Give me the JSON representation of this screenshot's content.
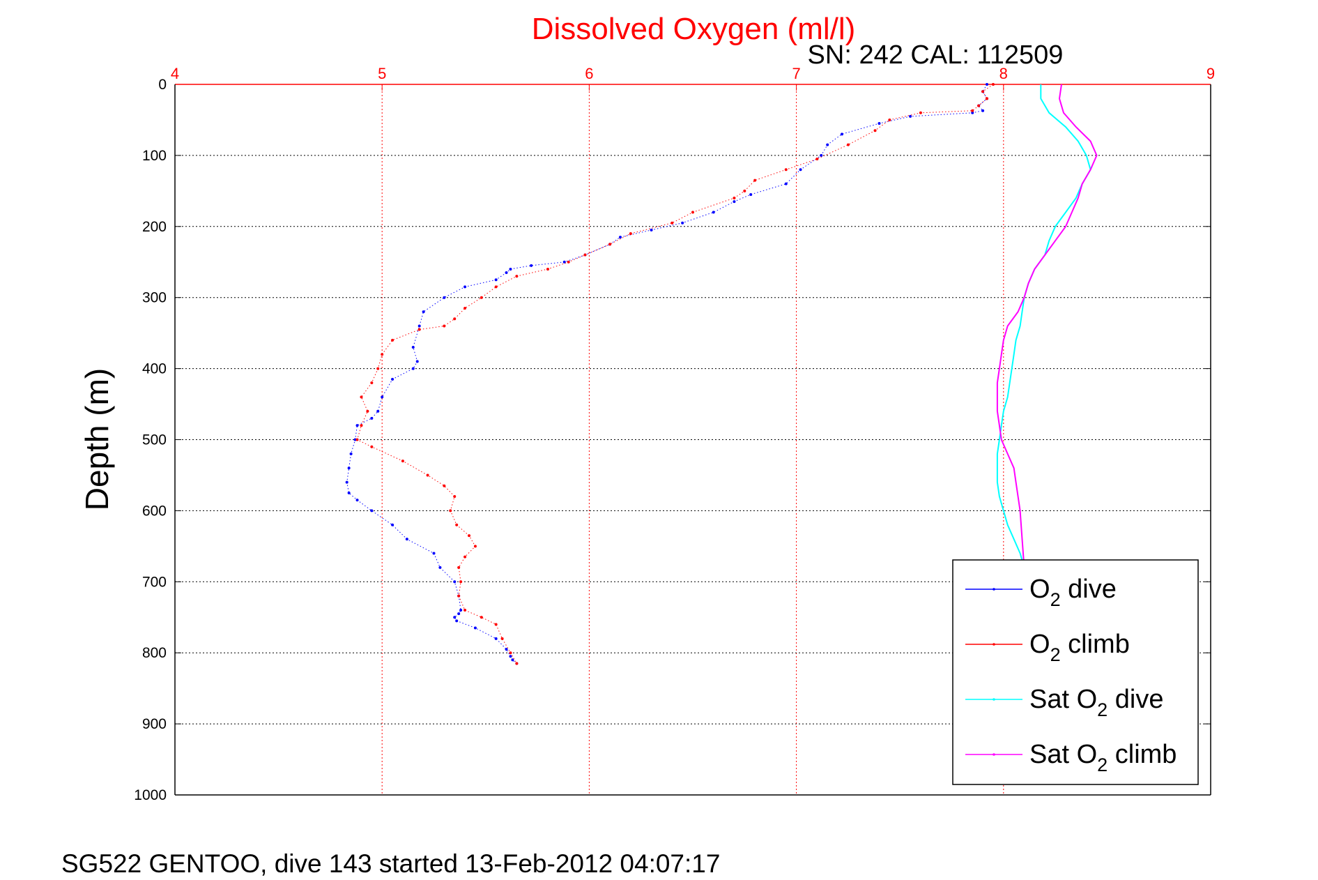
{
  "chart_data": {
    "type": "scatter",
    "title": "Dissolved Oxygen (ml/l)",
    "subtitle": "SN: 242  CAL: 112509",
    "xlabel": "",
    "ylabel": "Depth (m)",
    "xlim": [
      4,
      9
    ],
    "ylim": [
      0,
      1000
    ],
    "y_reversed": true,
    "x_axis_position": "top",
    "xticks": [
      4,
      5,
      6,
      7,
      8,
      9
    ],
    "yticks": [
      0,
      100,
      200,
      300,
      400,
      500,
      600,
      700,
      800,
      900,
      1000
    ],
    "grid": true,
    "legend_position": "bottom-right",
    "colors": {
      "x_axis": "#ff0000",
      "title": "#ff0000"
    },
    "series": [
      {
        "name": "O2 dive",
        "legend": {
          "pre": "O",
          "sub": "2",
          "post": " dive"
        },
        "color": "#0000ff",
        "mode": "markers",
        "x": [
          7.92,
          7.9,
          7.92,
          7.88,
          7.9,
          7.85,
          7.55,
          7.4,
          7.22,
          7.15,
          7.12,
          7.02,
          6.95,
          6.78,
          6.7,
          6.6,
          6.45,
          6.3,
          6.15,
          6.1,
          5.98,
          5.88,
          5.72,
          5.62,
          5.6,
          5.55,
          5.4,
          5.3,
          5.2,
          5.18,
          5.15,
          5.17,
          5.15,
          5.05,
          5.0,
          4.98,
          4.95,
          4.88,
          4.87,
          4.85,
          4.84,
          4.83,
          4.84,
          4.88,
          4.95,
          5.05,
          5.12,
          5.25,
          5.28,
          5.35,
          5.37,
          5.38,
          5.37,
          5.35,
          5.36,
          5.45,
          5.55,
          5.6,
          5.62,
          5.63,
          5.65
        ],
        "y": [
          0,
          10,
          20,
          30,
          37,
          40,
          45,
          55,
          70,
          85,
          100,
          120,
          140,
          155,
          165,
          180,
          195,
          205,
          215,
          225,
          240,
          250,
          255,
          260,
          265,
          275,
          285,
          300,
          320,
          340,
          370,
          390,
          400,
          415,
          440,
          460,
          470,
          480,
          500,
          520,
          540,
          560,
          575,
          585,
          600,
          620,
          640,
          660,
          680,
          700,
          720,
          740,
          745,
          750,
          755,
          765,
          780,
          795,
          805,
          810,
          815
        ]
      },
      {
        "name": "O2 climb",
        "legend": {
          "pre": "O",
          "sub": "2",
          "post": " climb"
        },
        "color": "#ff0000",
        "mode": "markers",
        "x": [
          7.95,
          7.9,
          7.92,
          7.88,
          7.85,
          7.6,
          7.45,
          7.38,
          7.25,
          7.1,
          6.95,
          6.8,
          6.75,
          6.7,
          6.5,
          6.4,
          6.2,
          6.1,
          5.98,
          5.9,
          5.8,
          5.65,
          5.55,
          5.48,
          5.4,
          5.35,
          5.3,
          5.18,
          5.05,
          5.0,
          4.98,
          4.95,
          4.9,
          4.93,
          4.9,
          4.88,
          4.95,
          5.1,
          5.22,
          5.3,
          5.35,
          5.33,
          5.36,
          5.42,
          5.45,
          5.4,
          5.37,
          5.38,
          5.37,
          5.4,
          5.48,
          5.55,
          5.58,
          5.62,
          5.65
        ],
        "y": [
          0,
          10,
          20,
          30,
          37,
          40,
          50,
          65,
          85,
          105,
          120,
          135,
          150,
          160,
          180,
          195,
          210,
          225,
          240,
          250,
          260,
          270,
          285,
          300,
          315,
          330,
          340,
          345,
          360,
          380,
          400,
          420,
          440,
          460,
          480,
          500,
          510,
          530,
          550,
          565,
          580,
          600,
          620,
          635,
          650,
          665,
          680,
          700,
          720,
          740,
          750,
          760,
          780,
          800,
          815
        ]
      },
      {
        "name": "Sat O2 dive",
        "legend": {
          "pre": "Sat O",
          "sub": "2",
          "post": " dive"
        },
        "color": "#00ffff",
        "mode": "line",
        "x": [
          8.18,
          8.18,
          8.22,
          8.3,
          8.36,
          8.4,
          8.42,
          8.38,
          8.35,
          8.3,
          8.25,
          8.22,
          8.2,
          8.15,
          8.12,
          8.1,
          8.09,
          8.08,
          8.06,
          8.05,
          8.04,
          8.03,
          8.02,
          8.0,
          7.99,
          7.98,
          7.97,
          7.97,
          7.97,
          7.98,
          8.0,
          8.02,
          8.05,
          8.08,
          8.1
        ],
        "y": [
          0,
          20,
          40,
          60,
          80,
          100,
          120,
          140,
          160,
          180,
          200,
          220,
          240,
          260,
          280,
          300,
          320,
          340,
          360,
          380,
          400,
          420,
          440,
          460,
          480,
          500,
          520,
          540,
          560,
          580,
          600,
          620,
          640,
          660,
          680
        ]
      },
      {
        "name": "Sat O2 climb",
        "legend": {
          "pre": "Sat O",
          "sub": "2",
          "post": " climb"
        },
        "color": "#ff00ff",
        "mode": "line",
        "x": [
          8.28,
          8.27,
          8.29,
          8.35,
          8.42,
          8.45,
          8.42,
          8.38,
          8.36,
          8.33,
          8.3,
          8.25,
          8.2,
          8.15,
          8.12,
          8.1,
          8.07,
          8.02,
          8.0,
          7.99,
          7.98,
          7.97,
          7.97,
          7.97,
          7.98,
          7.99,
          8.02,
          8.05,
          8.06,
          8.07,
          8.08,
          8.09,
          8.1
        ],
        "y": [
          0,
          20,
          40,
          60,
          80,
          100,
          120,
          140,
          160,
          180,
          200,
          220,
          240,
          260,
          280,
          300,
          320,
          340,
          360,
          380,
          400,
          420,
          440,
          460,
          480,
          500,
          520,
          540,
          560,
          580,
          600,
          640,
          680
        ]
      }
    ]
  },
  "footer": {
    "text": "SG522 GENTOO, dive 143 started 13-Feb-2012 04:07:17"
  }
}
